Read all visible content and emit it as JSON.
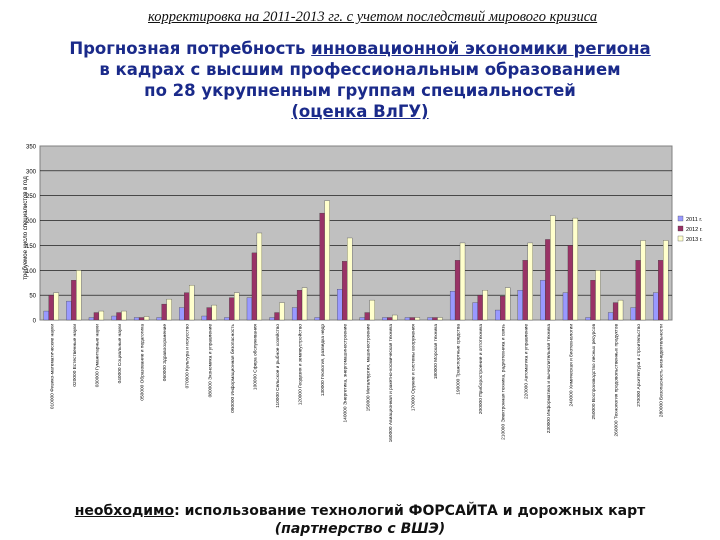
{
  "header": {
    "subtitle": "корректировка на 2011-2013 гг. с учетом последствий мирового кризиса",
    "title_line1_prefix": "Прогнозная потребность ",
    "title_line1_underlined": "инновационной экономики региона",
    "title_line2": "в кадрах с высшим профессиональным образованием",
    "title_line3": "по 28 укрупненным группам специальностей",
    "title_line4": "(оценка ВлГУ)"
  },
  "footer": {
    "line1_keyword": "необходимо",
    "line1_rest": ": использование технологий ФОРСАЙТА и дорожных карт",
    "line2": "(партнерство с ВШЭ)"
  },
  "colors": {
    "plot_bg": "#c0c0c0",
    "series": [
      "#9999ff",
      "#993366",
      "#ffffcc"
    ],
    "bar_edge": "#333333"
  },
  "chart_data": {
    "type": "bar",
    "ylabel": "требуемое число специалистов в год",
    "ylim": [
      0,
      350
    ],
    "yticks": [
      0,
      50,
      100,
      150,
      200,
      250,
      300,
      350
    ],
    "grid": true,
    "legend_position": "right",
    "categories": [
      "010000 Физико-математические науки",
      "020000 Естественные науки",
      "030000 Гуманитарные науки",
      "040000 Социальные науки",
      "050000 Образование и педагогика",
      "060000 Здравоохранение",
      "070000 Культура и искусство",
      "080000 Экономика и управление",
      "090000 Информационная безопасность",
      "100000 Сфера обслуживания",
      "110000 Сельское и рыбное хозяйство",
      "120000 Геодезия и землеустройство",
      "130000 Геология, разведка недр",
      "140000 Энергетика, энергомашиностроение",
      "150000 Металлургия, машиностроение",
      "160000 Авиационная и ракетно-космическая техника",
      "170000 Оружие и системы вооружения",
      "180000 Морская техника",
      "190000 Транспортные средства",
      "200000 Приборостроение и оптотехника",
      "210000 Электронная техника, радиотехника и связь",
      "220000 Автоматика и управление",
      "230000 Информатика и вычислительная техника",
      "240000 Химическая и биотехнологии",
      "250000 Воспроизводство лесных ресурсов",
      "260000 Технология продовольственных продуктов",
      "270000 Архитектура и строительство",
      "280000 Безопасность жизнедеятельности"
    ],
    "series": [
      {
        "name": "2011 г.",
        "values": [
          18,
          38,
          5,
          8,
          5,
          5,
          25,
          8,
          5,
          45,
          5,
          25,
          5,
          62,
          5,
          5,
          5,
          5,
          58,
          35,
          20,
          60,
          80,
          55,
          5,
          15,
          25,
          55
        ]
      },
      {
        "name": "2012 г.",
        "values": [
          50,
          80,
          15,
          15,
          5,
          32,
          55,
          25,
          45,
          135,
          15,
          60,
          215,
          118,
          15,
          5,
          5,
          5,
          120,
          50,
          48,
          120,
          162,
          150,
          80,
          35,
          120,
          120
        ]
      },
      {
        "name": "2013 г.",
        "values": [
          55,
          100,
          18,
          18,
          7,
          42,
          70,
          30,
          55,
          175,
          35,
          65,
          240,
          165,
          40,
          10,
          5,
          5,
          155,
          60,
          65,
          155,
          210,
          205,
          100,
          40,
          160,
          160
        ]
      }
    ]
  }
}
